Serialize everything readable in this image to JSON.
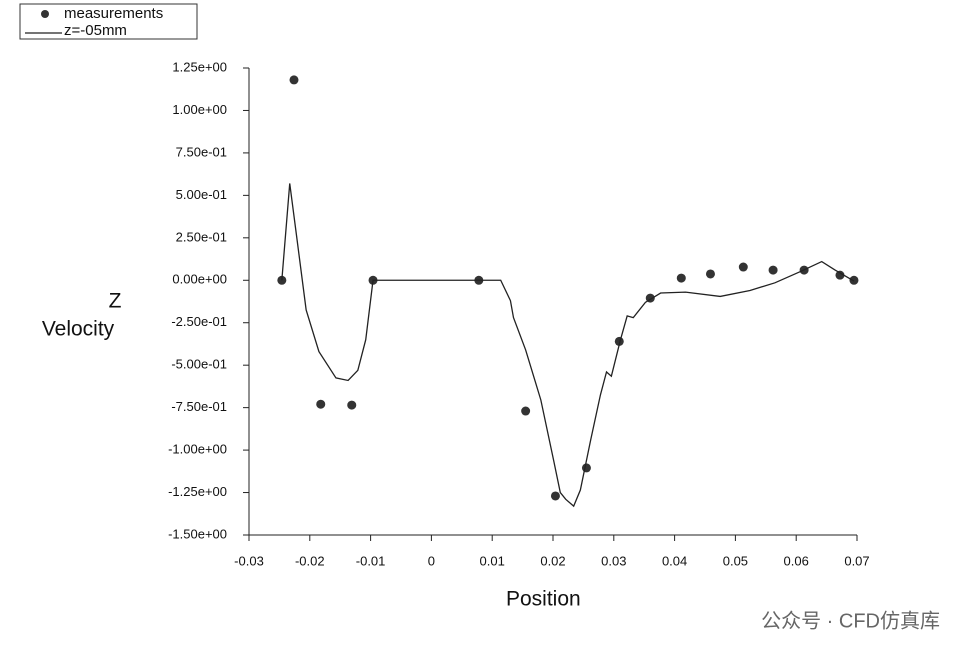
{
  "chart_data": {
    "type": "scatter",
    "xlabel": "Position",
    "ylabel": [
      "Z",
      "Velocity"
    ],
    "watermark": "公众号 · CFD仿真库",
    "xlim": [
      -0.03,
      0.07
    ],
    "xticks": [
      -0.03,
      -0.02,
      -0.01,
      0,
      0.01,
      0.02,
      0.03,
      0.04,
      0.05,
      0.06,
      0.07
    ],
    "ylim": [
      -1.5,
      1.25
    ],
    "yticks": [
      {
        "value": 1.25,
        "label": "1.25e+00"
      },
      {
        "value": 1.0,
        "label": "1.00e+00"
      },
      {
        "value": 0.75,
        "label": "7.50e-01"
      },
      {
        "value": 0.5,
        "label": "5.00e-01"
      },
      {
        "value": 0.25,
        "label": "2.50e-01"
      },
      {
        "value": 0,
        "label": "0.00e+00"
      },
      {
        "value": -0.25,
        "label": "-2.50e-01"
      },
      {
        "value": -0.5,
        "label": "-5.00e-01"
      },
      {
        "value": -0.75,
        "label": "-7.50e-01"
      },
      {
        "value": -1.0,
        "label": "-1.00e+00"
      },
      {
        "value": -1.25,
        "label": "-1.25e+00"
      },
      {
        "value": -1.5,
        "label": "-1.50e+00"
      }
    ],
    "grid": false,
    "legend": "top-left",
    "series": [
      {
        "name": "measurements",
        "type": "scatter",
        "color": "#333333",
        "x": [
          -0.0246,
          -0.0226,
          -0.0182,
          -0.0131,
          -0.0096,
          0.0078,
          0.0155,
          0.0204,
          0.0255,
          0.0309,
          0.036,
          0.0411,
          0.0459,
          0.0513,
          0.0562,
          0.0613,
          0.0672,
          0.0695
        ],
        "values": [
          0,
          1.18,
          -0.73,
          -0.735,
          0,
          0,
          -0.77,
          -1.27,
          -1.105,
          -0.36,
          -0.105,
          0.013,
          0.037,
          0.078,
          0.06,
          0.06,
          0.03,
          0
        ]
      },
      {
        "name": "z=-05mm",
        "type": "line",
        "color": "#222222",
        "x": [
          -0.0246,
          -0.0233,
          -0.0221,
          -0.0206,
          -0.0185,
          -0.0157,
          -0.0137,
          -0.0121,
          -0.0108,
          -0.0096,
          0.0114,
          0.013,
          0.0135,
          0.0155,
          0.018,
          0.0201,
          0.0212,
          0.0221,
          0.0234,
          0.0245,
          0.0262,
          0.0278,
          0.0288,
          0.0296,
          0.0311,
          0.0322,
          0.0332,
          0.0352,
          0.0377,
          0.0418,
          0.0475,
          0.0524,
          0.0565,
          0.0606,
          0.0642,
          0.0664,
          0.0695
        ],
        "values": [
          0,
          0.57,
          0.24,
          -0.175,
          -0.42,
          -0.575,
          -0.59,
          -0.53,
          -0.35,
          0,
          0,
          -0.12,
          -0.22,
          -0.41,
          -0.705,
          -1.06,
          -1.25,
          -1.29,
          -1.33,
          -1.235,
          -0.94,
          -0.675,
          -0.54,
          -0.565,
          -0.35,
          -0.21,
          -0.22,
          -0.13,
          -0.075,
          -0.07,
          -0.095,
          -0.06,
          -0.015,
          0.05,
          0.11,
          0.06,
          -0.005
        ]
      }
    ]
  }
}
